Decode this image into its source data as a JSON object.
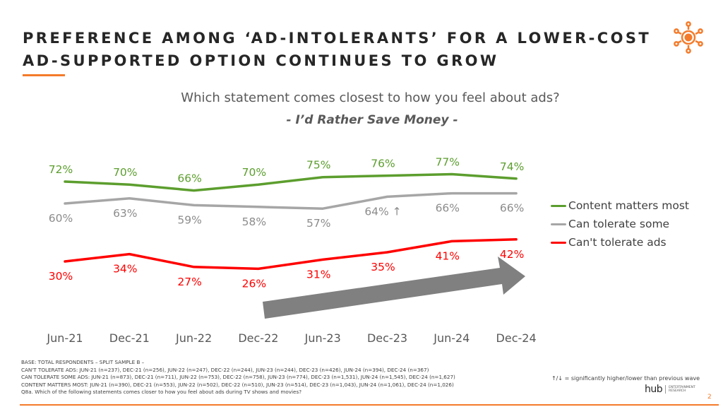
{
  "header": {
    "title_line1": "PREFERENCE AMONG ‘AD-INTOLERANTS’ FOR A LOWER-COST",
    "title_line2": "AD-SUPPORTED OPTION CONTINUES TO GROW",
    "logo_icon": "hub-network-sun-icon",
    "accent_color": "#f47b2a"
  },
  "question": {
    "text": "Which statement comes closest to how you feel about ads?",
    "subtitle": "- I’d Rather Save Money -"
  },
  "chart_data": {
    "type": "line",
    "title": "Which statement comes closest to how you feel about ads? - I’d Rather Save Money -",
    "xlabel": "",
    "ylabel": "",
    "grid": false,
    "legend_position": "right",
    "categories": [
      "Jun-21",
      "Dec-21",
      "Jun-22",
      "Dec-22",
      "Jun-23",
      "Dec-23",
      "Jun-24",
      "Dec-24"
    ],
    "series": [
      {
        "name": "Content matters most",
        "color": "#5c9e2e",
        "values": [
          72,
          70,
          66,
          70,
          75,
          76,
          77,
          74
        ],
        "labels": [
          "72%",
          "70%",
          "66%",
          "70%",
          "75%",
          "76%",
          "77%",
          "74%"
        ],
        "label_position": "above"
      },
      {
        "name": "Can tolerate some",
        "color": "#a6a6a6",
        "values": [
          60,
          63,
          59,
          58,
          57,
          64,
          66,
          66
        ],
        "labels": [
          "60%",
          "63%",
          "59%",
          "58%",
          "57%",
          "64% ↑",
          "66%",
          "66%"
        ],
        "label_position": "below"
      },
      {
        "name": "Can't tolerate ads",
        "color": "#ff0000",
        "values": [
          30,
          34,
          27,
          26,
          31,
          35,
          41,
          42
        ],
        "labels": [
          "30%",
          "34%",
          "27%",
          "26%",
          "31%",
          "35%",
          "41%",
          "42%"
        ],
        "label_position": "below"
      }
    ],
    "annotations": [
      {
        "type": "trend-arrow",
        "color": "#808080",
        "from_category": "Dec-22",
        "to_category": "Dec-24",
        "direction": "up"
      }
    ]
  },
  "footnotes": {
    "lines": [
      "BASE: TOTAL RESPONDENTS – SPLIT SAMPLE B –",
      "CAN'T TOLERATE ADS: JUN-21 (n=237), DEC-21 (n=256), JUN-22 (n=247), DEC-22 (n=244), JUN-23 (n=244), DEC-23 (n=426), JUN-24 (n=394), DEC-24 (n=367)",
      "CAN TOLERATE SOME ADS: JUN-21 (n=873), DEC-21 (n=711), JUN-22 (n=753), DEC-22 (n=758), JUN-23 (n=774), DEC-23 (n=1,531), JUN-24 (n=1,545), DEC-24 (n=1,627)",
      "CONTENT MATTERS MOST: JUN-21 (n=390), DEC-21 (n=553), JUN-22 (n=502), DEC-22 (n=510), JUN-23 (n=514), DEC-23 (n=1,043), JUN-24 (n=1,061), DEC-24 (n=1,026)",
      "Q8a. Which of the following statements comes closer to how you feel about ads during TV shows and movies?"
    ],
    "significance_note": "↑/↓ = significantly higher/lower than previous wave"
  },
  "branding": {
    "logo_word": "hub",
    "logo_sub1": "ENTERTAINMENT",
    "logo_sub2": "RESEARCH",
    "page_number": "2"
  }
}
